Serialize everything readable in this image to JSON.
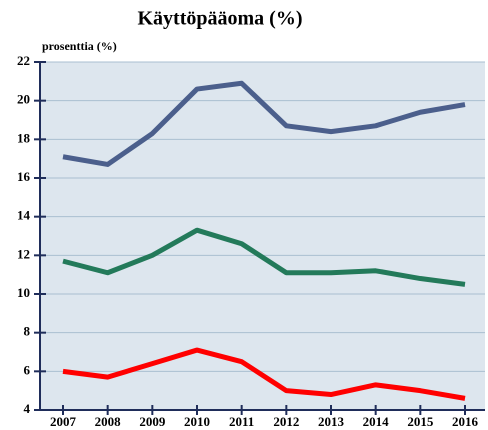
{
  "chart_data": {
    "type": "line",
    "title": "Käyttöpääoma (%)",
    "y_label": "prosenttia (%)",
    "categories": [
      "2007",
      "2008",
      "2009",
      "2010",
      "2011",
      "2012",
      "2013",
      "2014",
      "2015",
      "2016"
    ],
    "series": [
      {
        "color": "#4b5f8c",
        "values": [
          17.1,
          16.7,
          18.3,
          20.6,
          20.9,
          18.7,
          18.4,
          18.7,
          19.4,
          19.8
        ]
      },
      {
        "color": "#237a5a",
        "values": [
          11.7,
          11.1,
          12.0,
          13.3,
          12.6,
          11.1,
          11.1,
          11.2,
          10.8,
          10.5
        ]
      },
      {
        "color": "#ff0000",
        "values": [
          6.0,
          5.7,
          6.4,
          7.1,
          6.5,
          5.0,
          4.8,
          5.3,
          5.0,
          4.6
        ]
      }
    ],
    "ylim": [
      4,
      22
    ],
    "yticks": [
      4,
      6,
      8,
      10,
      12,
      14,
      16,
      18,
      20,
      22
    ],
    "grid": true
  }
}
